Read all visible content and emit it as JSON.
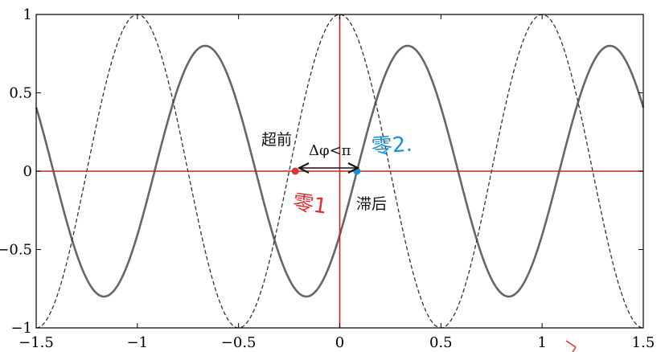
{
  "chart_data": {
    "type": "line",
    "title": "",
    "xlabel": "",
    "ylabel": "",
    "xlim": [
      -1.5,
      1.5
    ],
    "ylim": [
      -1,
      1
    ],
    "xticks": [
      -1.5,
      -1,
      -0.5,
      0,
      0.5,
      1,
      1.5
    ],
    "xtick_labels": [
      "−1.5",
      "−1",
      "−0.5",
      "0",
      "0.5",
      "1",
      "1.5"
    ],
    "yticks": [
      -1,
      -0.5,
      0,
      0.5,
      1
    ],
    "ytick_labels": [
      "−1",
      "−0.5",
      "0",
      "0.5",
      "1"
    ],
    "grid": false,
    "series": [
      {
        "style": "solid",
        "color": "#666666",
        "amplitude": 0.8,
        "period": 1.0,
        "zero_crossing_rising": 0.085
      },
      {
        "style": "dashed",
        "color": "#333333",
        "amplitude": 1.0,
        "period": 1.0,
        "peak_at": 0.0
      }
    ],
    "reference_lines": [
      {
        "orientation": "horizontal",
        "value": 0,
        "color": "#cc2222"
      },
      {
        "orientation": "vertical",
        "value": 0,
        "color": "#cc2222"
      }
    ],
    "markers": [
      {
        "x": -0.22,
        "y": 0,
        "color": "#e03030"
      },
      {
        "x": 0.085,
        "y": 0,
        "color": "#1a8fd8"
      }
    ],
    "annotations": {
      "lead": "超前",
      "lag": "滞后",
      "delta": "Δφ<π"
    },
    "handwritten": {
      "zero1": "零1",
      "zero2": "零2."
    }
  }
}
